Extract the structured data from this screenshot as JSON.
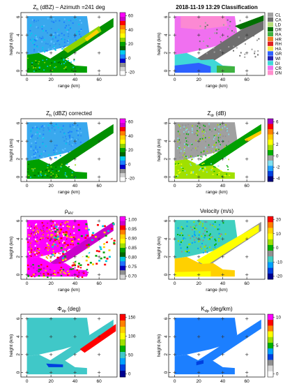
{
  "chart_data": [
    {
      "type": "heatmap",
      "panel": "zh",
      "title": "Zh (dBZ) – Azimuth =241 deg",
      "title_parts": {
        "main": "Z",
        "sub": "h",
        "rest": " (dBZ) – Azimuth =241 deg"
      },
      "xlabel": "range (km)",
      "ylabel": "height (km)",
      "xlim": [
        -5,
        75
      ],
      "ylim": [
        -0.5,
        6.5
      ],
      "xticks": [
        0,
        20,
        40,
        60
      ],
      "yticks": [
        0,
        2,
        4,
        6
      ],
      "colorbar": {
        "ticks": [
          60,
          40,
          20,
          0,
          -20
        ],
        "colors": [
          "#ff00ff",
          "#cc00cc",
          "#ff0000",
          "#ff7f00",
          "#ffd000",
          "#ffff00",
          "#8fd400",
          "#00a000",
          "#006600",
          "#00ccee",
          "#1c7fff",
          "#0000cc",
          "#909090",
          "#d0d0d0",
          "#ffffff"
        ]
      }
    },
    {
      "type": "heatmap",
      "panel": "class",
      "title": "2018-11-19 13:29   Classification",
      "xlabel": "range (km)",
      "ylabel": "height (km)",
      "xlim": [
        -5,
        75
      ],
      "ylim": [
        -0.5,
        6.5
      ],
      "xticks": [
        0,
        20,
        40,
        60
      ],
      "yticks": [
        0,
        2,
        4,
        6
      ],
      "categories": [
        {
          "code": "CL",
          "color": "#a0a0a0"
        },
        {
          "code": "CA",
          "color": "#6e6e6e"
        },
        {
          "code": "LD",
          "color": "#b8e07a"
        },
        {
          "code": "DR",
          "color": "#007000"
        },
        {
          "code": "RA",
          "color": "#3fb23f"
        },
        {
          "code": "HR",
          "color": "#f07f20"
        },
        {
          "code": "RH",
          "color": "#e02020"
        },
        {
          "code": "HA",
          "color": "#f3e84b"
        },
        {
          "code": "GR",
          "color": "#2d60ff"
        },
        {
          "code": "WI",
          "color": "#2222b2"
        },
        {
          "code": "DI",
          "color": "#40d8d8"
        },
        {
          "code": "CR",
          "color": "#f070f0"
        },
        {
          "code": "DN",
          "color": "#ff90cc"
        }
      ]
    },
    {
      "type": "heatmap",
      "panel": "zhc",
      "title": "Zh (dBZ) corrected",
      "title_parts": {
        "main": "Z",
        "sub": "h",
        "rest": " (dBZ) corrected"
      },
      "xlabel": "range (km)",
      "ylabel": "height (km)",
      "xlim": [
        -5,
        75
      ],
      "ylim": [
        -0.5,
        6.5
      ],
      "xticks": [
        0,
        20,
        40,
        60
      ],
      "yticks": [
        0,
        2,
        4,
        6
      ],
      "colorbar": {
        "ticks": [
          60,
          40,
          20,
          0,
          -20
        ],
        "colors": [
          "#ff00ff",
          "#cc00cc",
          "#ff0000",
          "#ff7f00",
          "#ffd000",
          "#ffff00",
          "#8fd400",
          "#00a000",
          "#006600",
          "#00ccee",
          "#1c7fff",
          "#0000cc",
          "#909090",
          "#d0d0d0",
          "#ffffff"
        ]
      }
    },
    {
      "type": "heatmap",
      "panel": "zdr",
      "title": "Zdr (dB)",
      "title_parts": {
        "main": "Z",
        "sub": "dr",
        "rest": " (dB)"
      },
      "xlabel": "range (km)",
      "ylabel": "height (km)",
      "xlim": [
        -5,
        75
      ],
      "ylim": [
        -0.5,
        6.5
      ],
      "xticks": [
        0,
        20,
        40,
        60
      ],
      "yticks": [
        0,
        2,
        4,
        6
      ],
      "colorbar": {
        "ticks": [
          6,
          4,
          2,
          0,
          -2,
          -4
        ],
        "colors": [
          "#a000c8",
          "#ff0000",
          "#ff7f00",
          "#ffcc00",
          "#ffff00",
          "#a0e000",
          "#00b000",
          "#a0a0a0",
          "#80e0f0",
          "#20a0ff",
          "#0040e0",
          "#000080"
        ]
      }
    },
    {
      "type": "heatmap",
      "panel": "rhohv",
      "title": "ρHV",
      "title_parts": {
        "main": "ρ",
        "sub": "HV",
        "rest": ""
      },
      "xlabel": "range (km)",
      "ylabel": "height (km)",
      "xlim": [
        -5,
        75
      ],
      "ylim": [
        -0.5,
        6.5
      ],
      "xticks": [
        0,
        20,
        40,
        60
      ],
      "yticks": [
        0,
        2,
        4,
        6
      ],
      "colorbar": {
        "ticks": [
          "1.00",
          "0.95",
          "0.90",
          "0.85",
          "0.80",
          "0.75",
          "0.70"
        ],
        "colors": [
          "#ff00ff",
          "#cc00cc",
          "#ff0000",
          "#ff7f00",
          "#ffd000",
          "#ffff00",
          "#a0e000",
          "#00a000",
          "#006600",
          "#00c8e0",
          "#2070ff",
          "#0000c0",
          "#909090",
          "#d8d8d8"
        ]
      }
    },
    {
      "type": "heatmap",
      "panel": "vel",
      "title": "Velocity (m/s)",
      "xlabel": "range (km)",
      "ylabel": "height (km)",
      "xlim": [
        -5,
        75
      ],
      "ylim": [
        -0.5,
        6.5
      ],
      "xticks": [
        0,
        20,
        40,
        60
      ],
      "yticks": [
        0,
        2,
        4,
        6
      ],
      "colorbar": {
        "ticks": [
          20,
          10,
          0,
          -10,
          -20
        ],
        "colors": [
          "#ff0000",
          "#ff7f00",
          "#ffd000",
          "#ffff00",
          "#a0e000",
          "#00b000",
          "#909090",
          "#40d0c0",
          "#00a0ff",
          "#0040e0",
          "#000090"
        ]
      }
    },
    {
      "type": "heatmap",
      "panel": "phidp",
      "title": "Φdp  (deg)",
      "title_parts": {
        "main": "Φ",
        "sub": "dp",
        "rest": "  (deg)"
      },
      "xlabel": "range (km)",
      "ylabel": "height (km)",
      "xlim": [
        -5,
        75
      ],
      "ylim": [
        -0.5,
        6.5
      ],
      "xticks": [
        0,
        20,
        40,
        60
      ],
      "yticks": [
        0,
        2,
        4,
        6
      ],
      "colorbar": {
        "ticks": [
          150,
          100,
          50,
          0
        ],
        "colors": [
          "#ff0000",
          "#ff7f00",
          "#ffd000",
          "#ffff00",
          "#a0e000",
          "#00b000",
          "#40c8c8",
          "#00a0ff",
          "#0040e0",
          "#000090"
        ]
      }
    },
    {
      "type": "heatmap",
      "panel": "kdp",
      "title": "Kdp  (deg/km)",
      "title_parts": {
        "main": "K",
        "sub": "dp",
        "rest": "  (deg/km)"
      },
      "xlabel": "range (km)",
      "ylabel": "height (km)",
      "xlim": [
        -5,
        75
      ],
      "ylim": [
        -0.5,
        6.5
      ],
      "xticks": [
        0,
        20,
        40,
        60
      ],
      "yticks": [
        0,
        2,
        4,
        6
      ],
      "colorbar": {
        "ticks": [
          10,
          5,
          0
        ],
        "colors": [
          "#ff00ff",
          "#ff0000",
          "#ff7f00",
          "#ffff00",
          "#a0e000",
          "#00b000",
          "#00a0ff",
          "#0040e0",
          "#909090",
          "#d8d8d8",
          "#ffffff"
        ]
      }
    }
  ]
}
